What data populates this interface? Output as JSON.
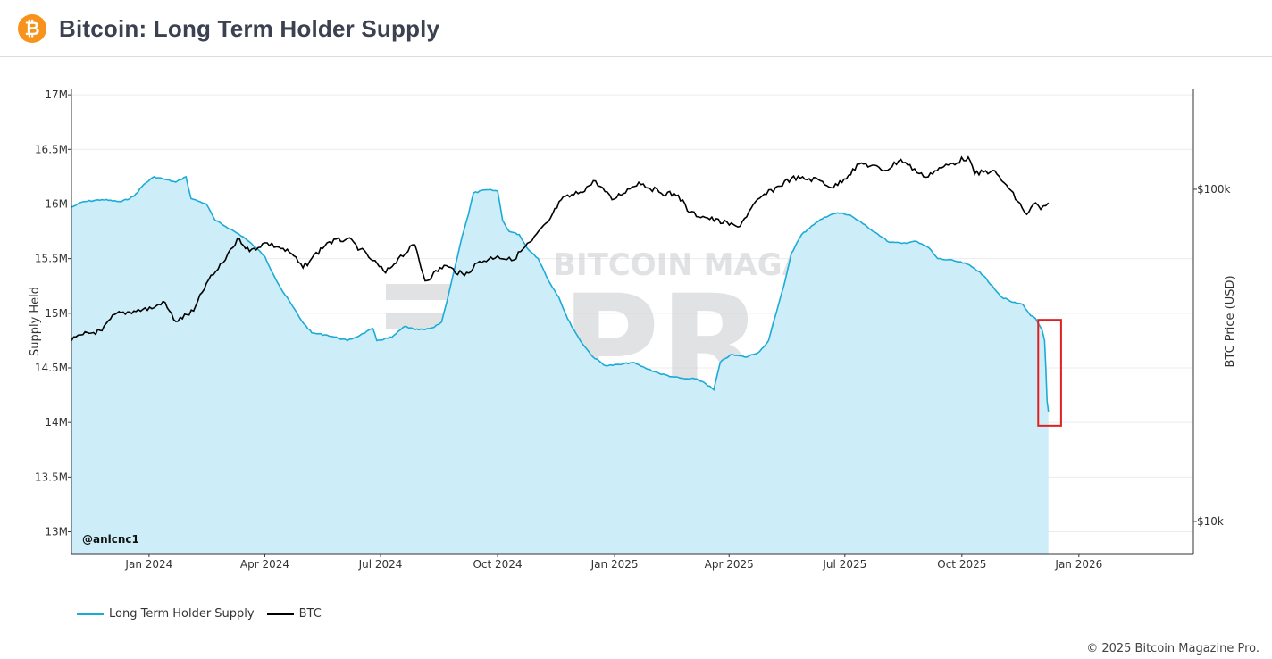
{
  "header": {
    "title": "Bitcoin: Long Term Holder Supply",
    "logo_glyph": "₿",
    "logo_color": "#f7931a"
  },
  "chart_data": {
    "type": "line",
    "watermark": {
      "top": "BITCOIN MAGAZINE",
      "bottom": "PRO"
    },
    "annotation_text": "@anlcnc1",
    "x_axis": {
      "range": [
        "2023-11-01",
        "2026-04-01"
      ],
      "ticks": [
        "Jan 2024",
        "Apr 2024",
        "Jul 2024",
        "Oct 2024",
        "Jan 2025",
        "Apr 2025",
        "Jul 2025",
        "Oct 2025",
        "Jan 2026"
      ],
      "tick_dates": [
        "2024-01-01",
        "2024-04-01",
        "2024-07-01",
        "2024-10-01",
        "2025-01-01",
        "2025-04-01",
        "2025-07-01",
        "2025-10-01",
        "2026-01-01"
      ]
    },
    "y_left": {
      "label": "Supply Held",
      "range": [
        12.8,
        17.05
      ],
      "ticks": [
        13,
        13.5,
        14,
        14.5,
        15,
        15.5,
        16,
        16.5,
        17
      ],
      "tick_labels": [
        "13M",
        "13.5M",
        "14M",
        "14.5M",
        "15M",
        "15.5M",
        "16M",
        "16.5M",
        "17M"
      ]
    },
    "y_right": {
      "label": "BTC Price (USD)",
      "scale": "log",
      "range": [
        8000,
        200000
      ],
      "ticks": [
        10000,
        100000
      ],
      "tick_labels": [
        "$10k",
        "$100k"
      ]
    },
    "series": [
      {
        "name": "Long Term Holder Supply",
        "color": "#1cabd7",
        "fill": "#cdeef8",
        "points": [
          [
            "2023-11-01",
            15.97
          ],
          [
            "2023-11-10",
            16.02
          ],
          [
            "2023-11-25",
            16.04
          ],
          [
            "2023-12-10",
            16.02
          ],
          [
            "2023-12-20",
            16.07
          ],
          [
            "2023-12-28",
            16.18
          ],
          [
            "2024-01-05",
            16.25
          ],
          [
            "2024-01-12",
            16.23
          ],
          [
            "2024-01-22",
            16.2
          ],
          [
            "2024-01-30",
            16.25
          ],
          [
            "2024-02-03",
            16.05
          ],
          [
            "2024-02-15",
            16.0
          ],
          [
            "2024-02-22",
            15.85
          ],
          [
            "2024-03-05",
            15.77
          ],
          [
            "2024-03-15",
            15.7
          ],
          [
            "2024-03-25",
            15.6
          ],
          [
            "2024-04-01",
            15.52
          ],
          [
            "2024-04-08",
            15.35
          ],
          [
            "2024-04-15",
            15.2
          ],
          [
            "2024-04-22",
            15.08
          ],
          [
            "2024-04-30",
            14.93
          ],
          [
            "2024-05-08",
            14.82
          ],
          [
            "2024-05-20",
            14.8
          ],
          [
            "2024-06-05",
            14.75
          ],
          [
            "2024-06-15",
            14.8
          ],
          [
            "2024-06-25",
            14.86
          ],
          [
            "2024-06-28",
            14.75
          ],
          [
            "2024-07-10",
            14.78
          ],
          [
            "2024-07-20",
            14.88
          ],
          [
            "2024-07-28",
            14.85
          ],
          [
            "2024-08-05",
            14.85
          ],
          [
            "2024-08-12",
            14.87
          ],
          [
            "2024-08-18",
            14.92
          ],
          [
            "2024-08-22",
            15.1
          ],
          [
            "2024-08-28",
            15.4
          ],
          [
            "2024-09-03",
            15.7
          ],
          [
            "2024-09-08",
            15.9
          ],
          [
            "2024-09-12",
            16.1
          ],
          [
            "2024-09-22",
            16.13
          ],
          [
            "2024-10-01",
            16.12
          ],
          [
            "2024-10-05",
            15.85
          ],
          [
            "2024-10-10",
            15.75
          ],
          [
            "2024-10-18",
            15.72
          ],
          [
            "2024-10-24",
            15.6
          ],
          [
            "2024-11-02",
            15.5
          ],
          [
            "2024-11-10",
            15.3
          ],
          [
            "2024-11-18",
            15.15
          ],
          [
            "2024-11-25",
            14.95
          ],
          [
            "2024-12-05",
            14.75
          ],
          [
            "2024-12-15",
            14.6
          ],
          [
            "2024-12-25",
            14.52
          ],
          [
            "2025-01-05",
            14.53
          ],
          [
            "2025-01-15",
            14.55
          ],
          [
            "2025-01-25",
            14.5
          ],
          [
            "2025-02-05",
            14.45
          ],
          [
            "2025-02-15",
            14.42
          ],
          [
            "2025-02-25",
            14.4
          ],
          [
            "2025-03-05",
            14.4
          ],
          [
            "2025-03-12",
            14.37
          ],
          [
            "2025-03-20",
            14.3
          ],
          [
            "2025-03-25",
            14.55
          ],
          [
            "2025-04-02",
            14.62
          ],
          [
            "2025-04-15",
            14.6
          ],
          [
            "2025-04-25",
            14.65
          ],
          [
            "2025-05-02",
            14.75
          ],
          [
            "2025-05-08",
            15.0
          ],
          [
            "2025-05-14",
            15.25
          ],
          [
            "2025-05-20",
            15.55
          ],
          [
            "2025-05-28",
            15.72
          ],
          [
            "2025-06-05",
            15.8
          ],
          [
            "2025-06-15",
            15.88
          ],
          [
            "2025-06-25",
            15.92
          ],
          [
            "2025-07-05",
            15.9
          ],
          [
            "2025-07-15",
            15.82
          ],
          [
            "2025-07-25",
            15.74
          ],
          [
            "2025-08-05",
            15.65
          ],
          [
            "2025-08-15",
            15.64
          ],
          [
            "2025-08-25",
            15.66
          ],
          [
            "2025-09-05",
            15.6
          ],
          [
            "2025-09-12",
            15.5
          ],
          [
            "2025-09-25",
            15.48
          ],
          [
            "2025-10-05",
            15.45
          ],
          [
            "2025-10-15",
            15.38
          ],
          [
            "2025-10-25",
            15.25
          ],
          [
            "2025-11-01",
            15.15
          ],
          [
            "2025-11-10",
            15.1
          ],
          [
            "2025-11-18",
            15.08
          ],
          [
            "2025-11-24",
            14.98
          ],
          [
            "2025-11-28",
            14.95
          ],
          [
            "2025-12-03",
            14.85
          ],
          [
            "2025-12-05",
            14.75
          ],
          [
            "2025-12-06",
            14.5
          ],
          [
            "2025-12-07",
            14.2
          ],
          [
            "2025-12-08",
            14.1
          ]
        ]
      },
      {
        "name": "BTC",
        "color": "#000000",
        "points": [
          [
            "2023-11-01",
            35000
          ],
          [
            "2023-11-10",
            36500
          ],
          [
            "2023-11-25",
            37500
          ],
          [
            "2023-12-05",
            42000
          ],
          [
            "2023-12-20",
            43000
          ],
          [
            "2024-01-05",
            44000
          ],
          [
            "2024-01-12",
            46000
          ],
          [
            "2024-01-22",
            40000
          ],
          [
            "2024-02-05",
            43000
          ],
          [
            "2024-02-15",
            52000
          ],
          [
            "2024-02-28",
            60000
          ],
          [
            "2024-03-05",
            66000
          ],
          [
            "2024-03-12",
            71000
          ],
          [
            "2024-03-20",
            65000
          ],
          [
            "2024-04-01",
            69000
          ],
          [
            "2024-04-12",
            67000
          ],
          [
            "2024-04-22",
            64000
          ],
          [
            "2024-05-01",
            58000
          ],
          [
            "2024-05-08",
            62000
          ],
          [
            "2024-05-20",
            69000
          ],
          [
            "2024-06-05",
            71000
          ],
          [
            "2024-06-15",
            66000
          ],
          [
            "2024-06-25",
            61000
          ],
          [
            "2024-07-05",
            56000
          ],
          [
            "2024-07-15",
            62000
          ],
          [
            "2024-07-28",
            68000
          ],
          [
            "2024-08-05",
            53000
          ],
          [
            "2024-08-20",
            59000
          ],
          [
            "2024-09-05",
            55000
          ],
          [
            "2024-09-15",
            60000
          ],
          [
            "2024-10-01",
            63000
          ],
          [
            "2024-10-12",
            61000
          ],
          [
            "2024-10-28",
            70000
          ],
          [
            "2024-11-10",
            80000
          ],
          [
            "2024-11-20",
            93000
          ],
          [
            "2024-12-05",
            98000
          ],
          [
            "2024-12-17",
            106000
          ],
          [
            "2024-12-30",
            93000
          ],
          [
            "2025-01-20",
            105000
          ],
          [
            "2025-02-05",
            98000
          ],
          [
            "2025-02-20",
            96000
          ],
          [
            "2025-03-01",
            85000
          ],
          [
            "2025-03-15",
            82000
          ],
          [
            "2025-04-08",
            77000
          ],
          [
            "2025-04-25",
            94000
          ],
          [
            "2025-05-20",
            108000
          ],
          [
            "2025-06-10",
            107000
          ],
          [
            "2025-06-22",
            101000
          ],
          [
            "2025-07-14",
            120000
          ],
          [
            "2025-08-02",
            114000
          ],
          [
            "2025-08-14",
            123000
          ],
          [
            "2025-09-01",
            109000
          ],
          [
            "2025-09-15",
            116000
          ],
          [
            "2025-10-06",
            125000
          ],
          [
            "2025-10-11",
            111000
          ],
          [
            "2025-10-25",
            114000
          ],
          [
            "2025-11-05",
            103000
          ],
          [
            "2025-11-21",
            84000
          ],
          [
            "2025-11-28",
            91000
          ],
          [
            "2025-12-02",
            87000
          ],
          [
            "2025-12-08",
            91000
          ]
        ]
      }
    ],
    "highlight": {
      "x_range": [
        "2025-11-30",
        "2025-12-18"
      ],
      "y_range": [
        13.97,
        14.94
      ],
      "color": "#e02020"
    }
  },
  "legend": [
    {
      "label": "Long Term Holder Supply",
      "color": "#1cabd7"
    },
    {
      "label": "BTC",
      "color": "#000000"
    }
  ],
  "footer": {
    "copyright": "© 2025 Bitcoin Magazine Pro."
  }
}
